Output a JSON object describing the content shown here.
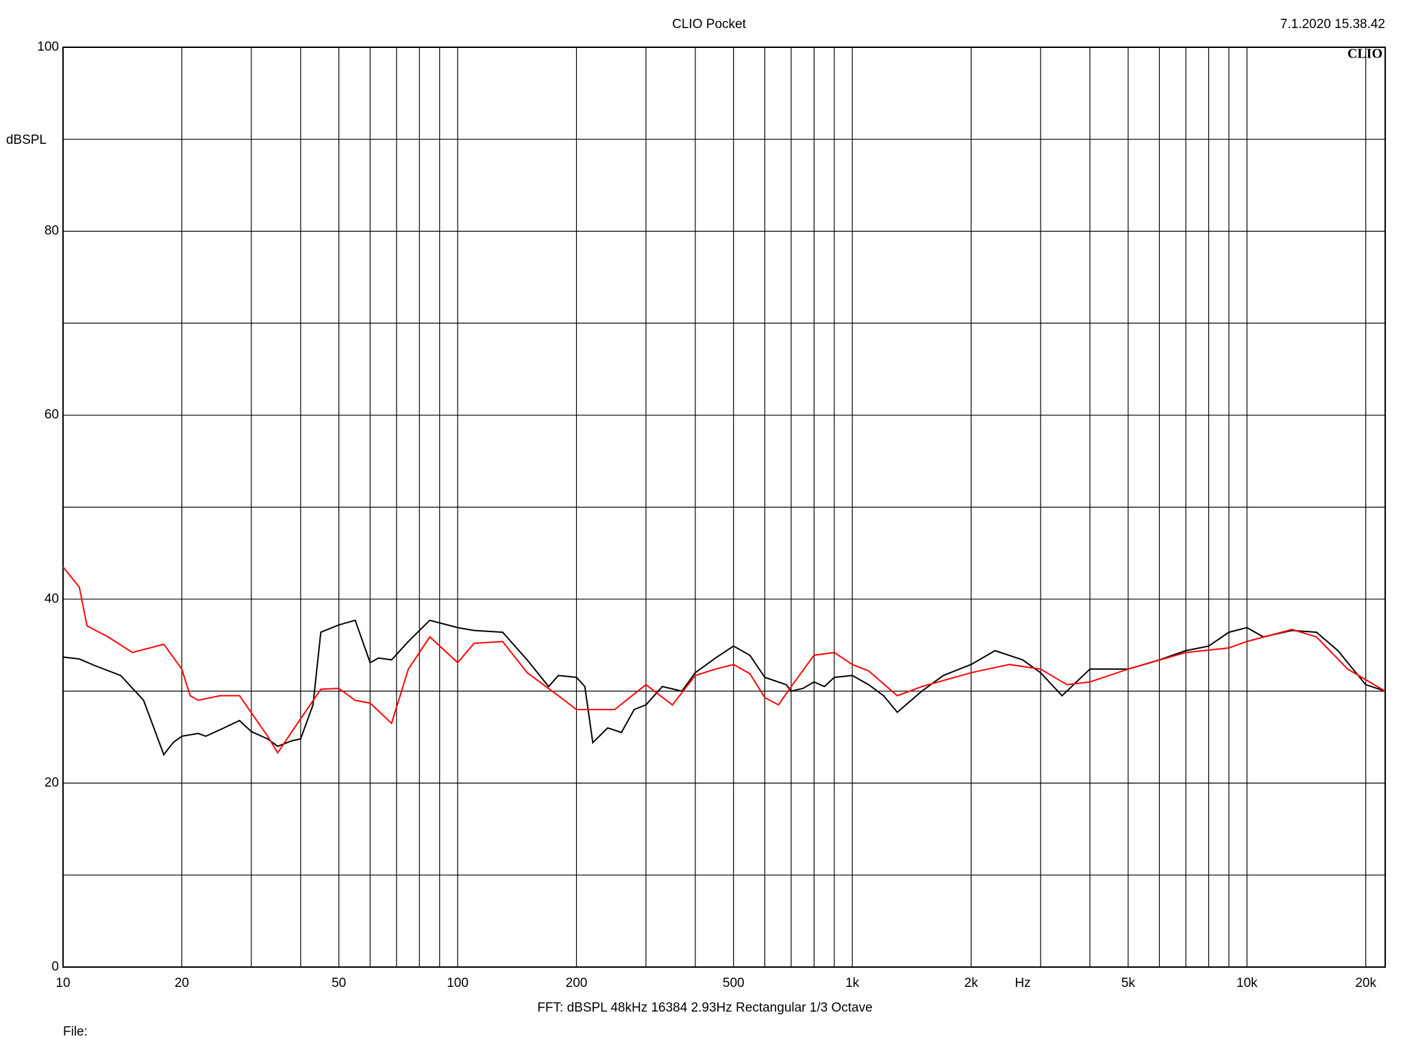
{
  "chart_data": {
    "type": "line",
    "title": "CLIO Pocket",
    "timestamp": "7.1.2020 15.38.42",
    "logo": "CLIO",
    "y_label": "dBSPL",
    "x_label": "Hz",
    "footer": "FFT:  dBSPL  48kHz   16384  2.93Hz  Rectangular  1/3 Octave",
    "file_label": "File:",
    "log_x": true,
    "grid": true,
    "xlim": [
      10,
      22400
    ],
    "ylim": [
      0,
      100
    ],
    "xticks": [
      10,
      20,
      50,
      100,
      200,
      500,
      {
        "value": 1000,
        "label": "1k"
      },
      {
        "value": 2000,
        "label": "2k"
      },
      {
        "value": 5000,
        "label": "5k"
      },
      {
        "value": 10000,
        "label": "10k"
      },
      {
        "value": 20000,
        "label": "20k"
      }
    ],
    "x_minor_grid": [
      30,
      40,
      60,
      70,
      80,
      90,
      300,
      400,
      600,
      700,
      800,
      900,
      3000,
      4000,
      6000,
      7000,
      8000,
      9000
    ],
    "yticks": [
      0,
      20,
      40,
      60,
      80,
      100
    ],
    "y_minor_grid": [
      10,
      30,
      50,
      70,
      90
    ],
    "series": [
      {
        "color": "#000000",
        "x": [
          10,
          11,
          12,
          14,
          16,
          18,
          19,
          20,
          22,
          23,
          25,
          28,
          30,
          33,
          35,
          38,
          40,
          43,
          45,
          50,
          55,
          60,
          63,
          68,
          75,
          85,
          100,
          110,
          130,
          150,
          170,
          180,
          200,
          210,
          220,
          240,
          260,
          280,
          300,
          330,
          370,
          400,
          450,
          500,
          550,
          600,
          680,
          700,
          750,
          800,
          850,
          900,
          1000,
          1100,
          1200,
          1300,
          1500,
          1700,
          2000,
          2300,
          2700,
          3000,
          3400,
          4000,
          5000,
          6000,
          7000,
          8000,
          9000,
          10000,
          11000,
          13000,
          15000,
          17000,
          20000,
          22400
        ],
        "values": [
          33.7,
          33.5,
          32.8,
          31.7,
          29,
          23.1,
          24.4,
          25.1,
          25.4,
          25.1,
          25.8,
          26.8,
          25.6,
          24.8,
          24,
          24.6,
          24.8,
          28.5,
          36.4,
          37.2,
          37.7,
          33.1,
          33.6,
          33.4,
          35.4,
          37.7,
          36.9,
          36.6,
          36.4,
          33.4,
          30.5,
          31.7,
          31.5,
          30.5,
          24.4,
          26,
          25.5,
          28,
          28.5,
          30.5,
          30,
          32,
          33.6,
          34.9,
          33.9,
          31.5,
          30.7,
          30,
          30.3,
          31,
          30.5,
          31.5,
          31.7,
          30.7,
          29.5,
          27.7,
          30,
          31.7,
          32.9,
          34.4,
          33.4,
          32,
          29.5,
          32.4,
          32.4,
          33.4,
          34.4,
          34.9,
          36.4,
          36.9,
          35.9,
          36.6,
          36.4,
          34.4,
          30.7,
          30
        ]
      },
      {
        "color": "#ff0000",
        "x": [
          10,
          11,
          11.5,
          13,
          15,
          18,
          20,
          21,
          22,
          25,
          28,
          33,
          35,
          40,
          45,
          50,
          55,
          60,
          68,
          75,
          85,
          100,
          110,
          130,
          150,
          180,
          200,
          250,
          300,
          350,
          400,
          450,
          500,
          550,
          600,
          650,
          700,
          800,
          900,
          1000,
          1100,
          1300,
          1500,
          2000,
          2500,
          3000,
          3500,
          4000,
          5000,
          7000,
          9000,
          10000,
          13000,
          15000,
          18000,
          22400
        ],
        "values": [
          43.5,
          41.3,
          37.1,
          35.9,
          34.2,
          35.1,
          32.4,
          29.5,
          29,
          29.5,
          29.5,
          25.1,
          23.3,
          27,
          30.2,
          30.3,
          29,
          28.7,
          26.5,
          32.4,
          35.9,
          33.1,
          35.2,
          35.4,
          32,
          29.5,
          28,
          28,
          30.7,
          28.5,
          31.7,
          32.4,
          32.9,
          31.9,
          29.3,
          28.5,
          30.5,
          33.9,
          34.2,
          32.9,
          32.2,
          29.5,
          30.5,
          32,
          32.9,
          32.4,
          30.7,
          31,
          32.4,
          34.2,
          34.7,
          35.4,
          36.7,
          35.9,
          32.4,
          30
        ]
      }
    ]
  }
}
